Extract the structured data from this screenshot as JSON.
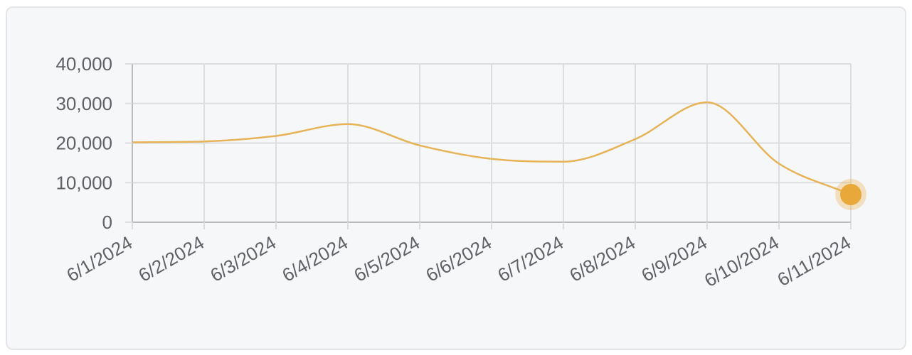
{
  "colors": {
    "series": "#e6b356",
    "highlight_point": "#e9a93a",
    "grid": "#dcdde0",
    "axis": "#b9bbbf",
    "tick_text": "#5f6166",
    "card_bg": "#f6f7f9",
    "card_border": "#e4e5e8"
  },
  "chart_data": {
    "type": "line",
    "title": "",
    "xlabel": "",
    "ylabel": "",
    "x": [
      "6/1/2024",
      "6/2/2024",
      "6/3/2024",
      "6/4/2024",
      "6/5/2024",
      "6/6/2024",
      "6/7/2024",
      "6/8/2024",
      "6/9/2024",
      "6/10/2024",
      "6/11/2024"
    ],
    "series": [
      {
        "values": [
          20200,
          20400,
          21800,
          24800,
          19400,
          16000,
          15300,
          21000,
          30300,
          14800,
          7000
        ],
        "color": "#e6b356",
        "smooth": true
      }
    ],
    "ylim": [
      0,
      40000
    ],
    "yticks": [
      0,
      10000,
      20000,
      30000,
      40000
    ],
    "ytick_labels": [
      "0",
      "10,000",
      "20,000",
      "30,000",
      "40,000"
    ],
    "grid": true,
    "legend": "none",
    "highlighted_point": "6/11/2024"
  }
}
